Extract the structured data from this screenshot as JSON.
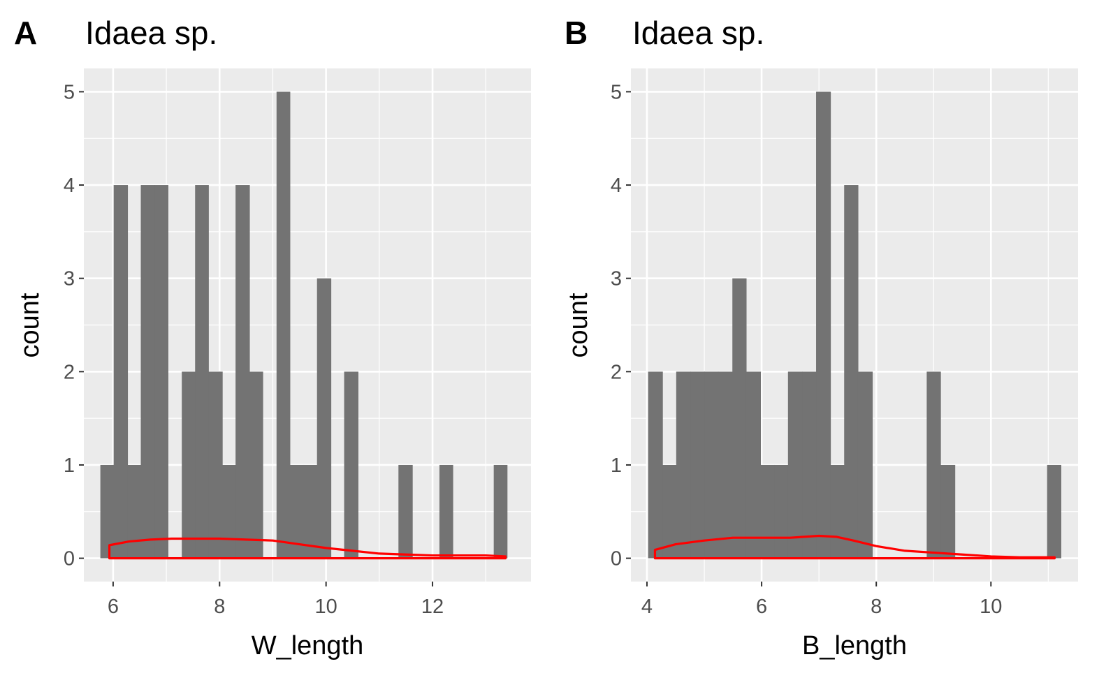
{
  "chart_data": [
    {
      "type": "bar",
      "panel_tag": "A",
      "title": "Idaea sp.",
      "xlabel": "W_length",
      "ylabel": "count",
      "xlim": [
        5.45,
        13.85
      ],
      "ylim": [
        -0.25,
        5.25
      ],
      "xticks": [
        6,
        8,
        10,
        12
      ],
      "xtick_labels": [
        "6",
        "8",
        "10",
        "12"
      ],
      "yticks": [
        0,
        1,
        2,
        3,
        4,
        5
      ],
      "ytick_labels": [
        "0",
        "1",
        "2",
        "3",
        "4",
        "5"
      ],
      "bar_fill": "#737373",
      "density_color": "#ff0000",
      "panel_bg": "#ebebeb",
      "grid_color": "#ffffff",
      "grid": true,
      "bins": [
        {
          "x0": 5.76,
          "x1": 6.01,
          "count": 1
        },
        {
          "x0": 6.01,
          "x1": 6.27,
          "count": 4
        },
        {
          "x0": 6.27,
          "x1": 6.52,
          "count": 1
        },
        {
          "x0": 6.52,
          "x1": 6.78,
          "count": 4
        },
        {
          "x0": 6.78,
          "x1": 7.03,
          "count": 4
        },
        {
          "x0": 7.29,
          "x1": 7.54,
          "count": 2
        },
        {
          "x0": 7.54,
          "x1": 7.79,
          "count": 4
        },
        {
          "x0": 7.79,
          "x1": 8.05,
          "count": 2
        },
        {
          "x0": 8.05,
          "x1": 8.3,
          "count": 1
        },
        {
          "x0": 8.3,
          "x1": 8.56,
          "count": 4
        },
        {
          "x0": 8.56,
          "x1": 8.81,
          "count": 2
        },
        {
          "x0": 9.07,
          "x1": 9.32,
          "count": 5
        },
        {
          "x0": 9.32,
          "x1": 9.58,
          "count": 1
        },
        {
          "x0": 9.58,
          "x1": 9.83,
          "count": 1
        },
        {
          "x0": 9.83,
          "x1": 10.09,
          "count": 3
        },
        {
          "x0": 10.34,
          "x1": 10.6,
          "count": 2
        },
        {
          "x0": 11.36,
          "x1": 11.62,
          "count": 1
        },
        {
          "x0": 12.13,
          "x1": 12.38,
          "count": 1
        },
        {
          "x0": 13.15,
          "x1": 13.4,
          "count": 1
        }
      ],
      "density": {
        "x": [
          5.93,
          6.3,
          6.7,
          7.1,
          7.5,
          8.0,
          8.5,
          9.0,
          9.5,
          10.0,
          10.5,
          11.0,
          11.5,
          12.0,
          12.5,
          13.0,
          13.37
        ],
        "y": [
          0.14,
          0.18,
          0.2,
          0.21,
          0.21,
          0.21,
          0.2,
          0.19,
          0.15,
          0.11,
          0.08,
          0.05,
          0.04,
          0.03,
          0.03,
          0.03,
          0.02
        ]
      }
    },
    {
      "type": "bar",
      "panel_tag": "B",
      "title": "Idaea sp.",
      "xlabel": "B_length",
      "ylabel": "count",
      "xlim": [
        3.72,
        11.52
      ],
      "ylim": [
        -0.25,
        5.25
      ],
      "xticks": [
        4,
        6,
        8,
        10
      ],
      "xtick_labels": [
        "4",
        "6",
        "8",
        "10"
      ],
      "yticks": [
        0,
        1,
        2,
        3,
        4,
        5
      ],
      "ytick_labels": [
        "0",
        "1",
        "2",
        "3",
        "4",
        "5"
      ],
      "bar_fill": "#737373",
      "density_color": "#ff0000",
      "panel_bg": "#ebebeb",
      "grid_color": "#ffffff",
      "grid": true,
      "bins": [
        {
          "x0": 4.02,
          "x1": 4.27,
          "count": 2
        },
        {
          "x0": 4.27,
          "x1": 4.51,
          "count": 1
        },
        {
          "x0": 4.51,
          "x1": 4.76,
          "count": 2
        },
        {
          "x0": 4.76,
          "x1": 5.0,
          "count": 2
        },
        {
          "x0": 5.0,
          "x1": 5.24,
          "count": 2
        },
        {
          "x0": 5.24,
          "x1": 5.49,
          "count": 2
        },
        {
          "x0": 5.49,
          "x1": 5.73,
          "count": 3
        },
        {
          "x0": 5.73,
          "x1": 5.98,
          "count": 2
        },
        {
          "x0": 5.98,
          "x1": 6.22,
          "count": 1
        },
        {
          "x0": 6.22,
          "x1": 6.46,
          "count": 1
        },
        {
          "x0": 6.46,
          "x1": 6.71,
          "count": 2
        },
        {
          "x0": 6.71,
          "x1": 6.95,
          "count": 2
        },
        {
          "x0": 6.95,
          "x1": 7.2,
          "count": 5
        },
        {
          "x0": 7.2,
          "x1": 7.44,
          "count": 1
        },
        {
          "x0": 7.44,
          "x1": 7.68,
          "count": 4
        },
        {
          "x0": 7.68,
          "x1": 7.93,
          "count": 2
        },
        {
          "x0": 8.88,
          "x1": 9.12,
          "count": 2
        },
        {
          "x0": 9.12,
          "x1": 9.37,
          "count": 1
        },
        {
          "x0": 10.98,
          "x1": 11.22,
          "count": 1
        }
      ],
      "density": {
        "x": [
          4.14,
          4.5,
          5.0,
          5.5,
          6.0,
          6.5,
          7.0,
          7.3,
          7.6,
          8.0,
          8.5,
          9.0,
          9.5,
          10.0,
          10.5,
          11.11
        ],
        "y": [
          0.09,
          0.15,
          0.19,
          0.22,
          0.22,
          0.22,
          0.24,
          0.23,
          0.19,
          0.13,
          0.08,
          0.06,
          0.04,
          0.02,
          0.01,
          0.01
        ]
      }
    }
  ]
}
